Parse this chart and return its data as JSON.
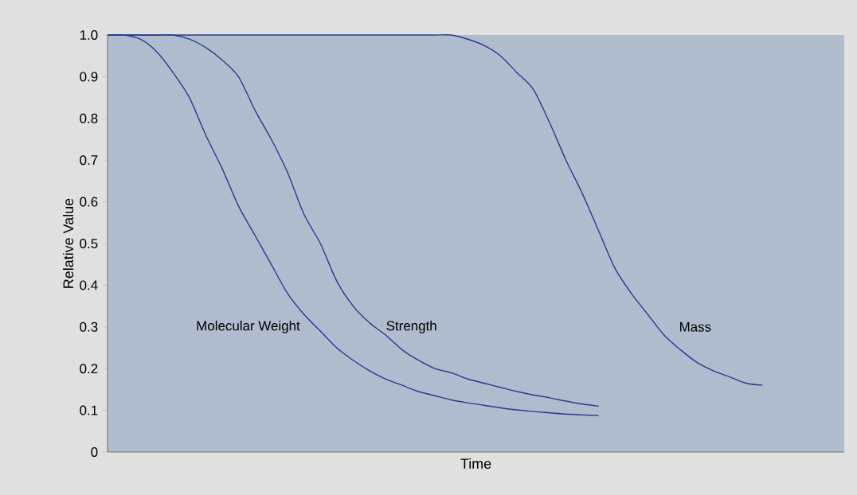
{
  "chart_data": {
    "type": "line",
    "xlabel": "Time",
    "ylabel": "Relative Value",
    "categories": [
      null,
      null,
      null,
      null,
      null,
      null,
      null,
      null,
      null,
      null,
      null,
      null,
      null,
      null,
      null,
      null,
      null,
      null,
      null,
      null,
      null,
      null,
      null,
      null,
      null,
      null,
      null,
      null,
      null,
      null,
      null,
      null,
      null,
      null,
      null,
      null,
      null,
      null,
      null,
      null,
      null,
      null,
      null,
      null,
      null,
      null
    ],
    "series": [
      {
        "name": "Molecular Weight",
        "color": "#2b3990",
        "values": [
          1.0,
          1.0,
          0.99,
          0.96,
          0.91,
          0.85,
          0.76,
          0.68,
          0.59,
          0.52,
          0.45,
          0.38,
          0.33,
          0.29,
          0.25,
          0.22,
          0.195,
          0.175,
          0.16,
          0.145,
          0.135,
          0.125,
          0.118,
          0.112,
          0.106,
          0.101,
          0.097,
          0.094,
          0.091,
          0.089,
          0.087,
          null,
          null,
          null,
          null,
          null,
          null,
          null,
          null,
          null,
          null,
          null,
          null,
          null,
          null,
          null
        ]
      },
      {
        "name": "Strength",
        "color": "#2b3990",
        "values": [
          1.0,
          1.0,
          1.0,
          1.0,
          1.0,
          0.99,
          0.97,
          0.94,
          0.9,
          0.82,
          0.75,
          0.67,
          0.57,
          0.5,
          0.41,
          0.35,
          0.31,
          0.28,
          0.245,
          0.22,
          0.2,
          0.19,
          0.175,
          0.165,
          0.155,
          0.145,
          0.137,
          0.13,
          0.122,
          0.115,
          0.11,
          null,
          null,
          null,
          null,
          null,
          null,
          null,
          null,
          null,
          null,
          null,
          null,
          null,
          null,
          null
        ]
      },
      {
        "name": "Mass",
        "color": "#2b3990",
        "values": [
          1.0,
          1.0,
          1.0,
          1.0,
          1.0,
          1.0,
          1.0,
          1.0,
          1.0,
          1.0,
          1.0,
          1.0,
          1.0,
          1.0,
          1.0,
          1.0,
          1.0,
          1.0,
          1.0,
          1.0,
          1.0,
          1.0,
          0.99,
          0.975,
          0.95,
          0.91,
          0.87,
          0.79,
          0.7,
          0.62,
          0.53,
          0.44,
          0.38,
          0.33,
          0.28,
          0.245,
          0.215,
          0.195,
          0.18,
          0.165,
          0.16,
          null,
          null,
          null,
          null,
          null
        ]
      }
    ],
    "ylim": [
      0,
      1
    ],
    "yticks": [
      0,
      0.1,
      0.2,
      0.3,
      0.4,
      0.5,
      0.6,
      0.7,
      0.8,
      0.9,
      {
        "value": 1,
        "label": "1.0"
      }
    ],
    "grid": false,
    "legend": false,
    "marker": "none",
    "line_style": "solid"
  }
}
